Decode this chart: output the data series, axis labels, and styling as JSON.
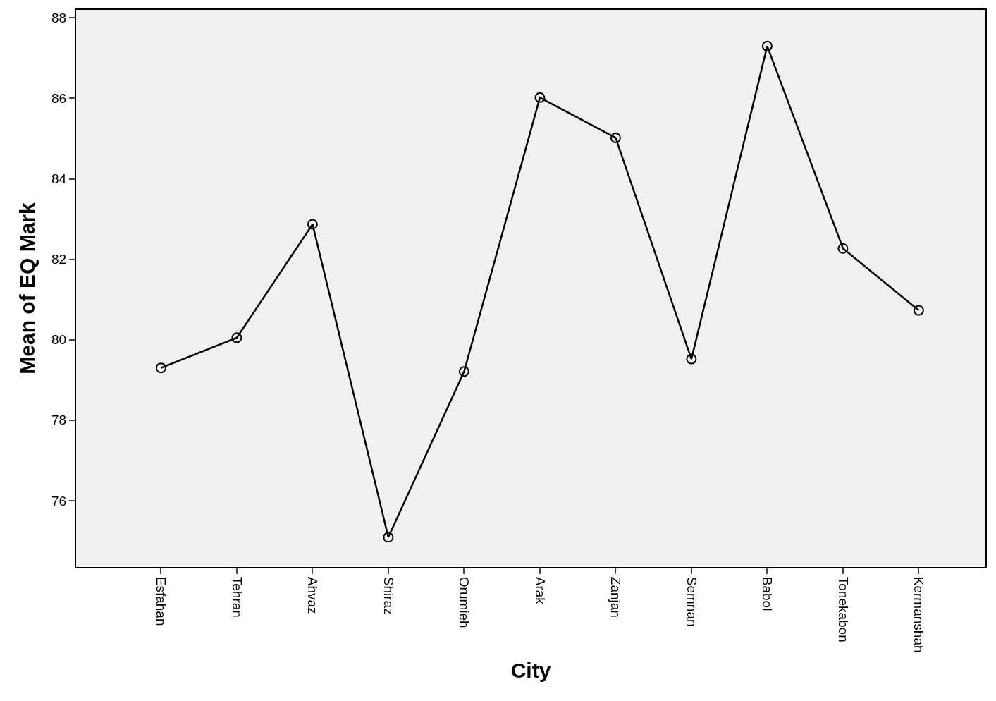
{
  "chart_data": {
    "type": "line",
    "xlabel": "City",
    "ylabel": "Mean of EQ Mark",
    "categories": [
      "Esfahan",
      "Tehran",
      "Ahvaz",
      "Shiraz",
      "Orumieh",
      "Arak",
      "Zanjan",
      "Semnan",
      "Babol",
      "Tonekabon",
      "Kermanshah"
    ],
    "series": [
      {
        "color": "#000000",
        "values": [
          79.3,
          80.05,
          82.87,
          75.09,
          79.21,
          86.02,
          85.02,
          79.52,
          87.3,
          82.27,
          80.73
        ]
      }
    ],
    "ylim": [
      74.35,
      88.2
    ],
    "yticks": [
      76,
      78,
      80,
      82,
      84,
      86,
      88
    ],
    "grid": false,
    "legend": false,
    "marker": "circle",
    "line_style": "solid"
  }
}
